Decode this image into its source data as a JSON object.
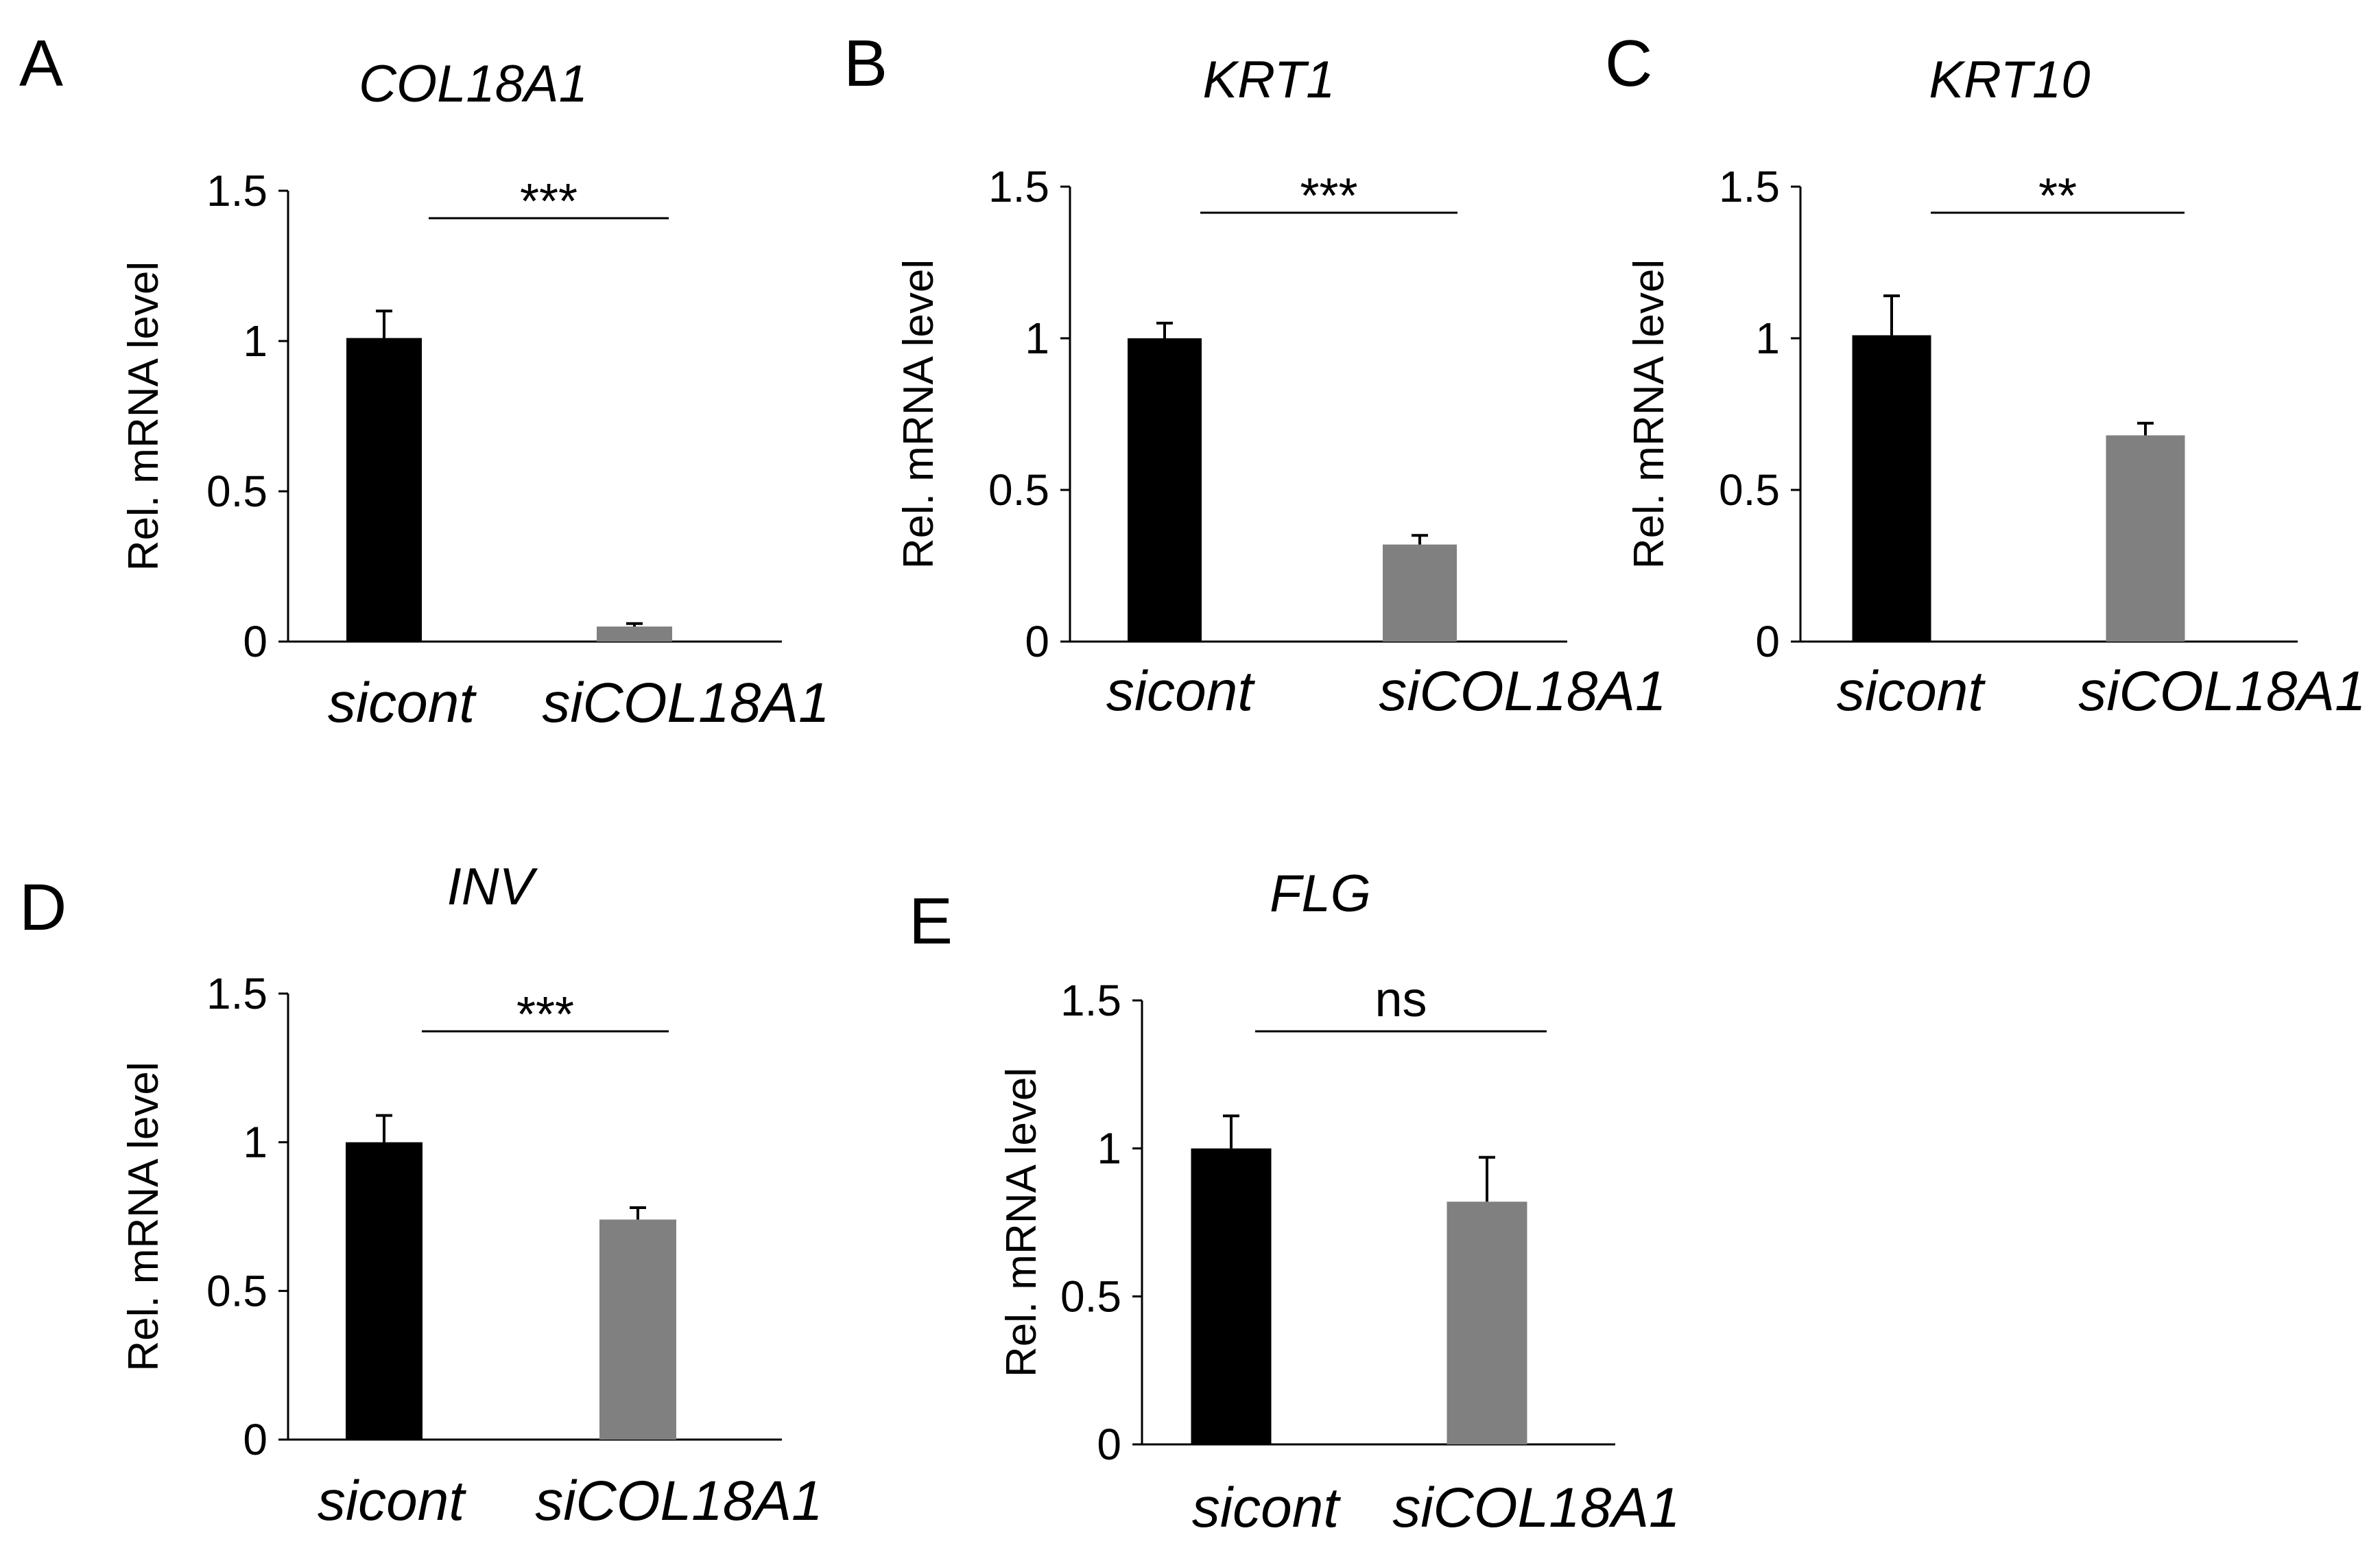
{
  "chart_data": [
    {
      "panel": "A",
      "type": "bar",
      "title": "COL18A1",
      "ylabel": "Rel. mRNA level",
      "ylim": [
        0,
        1.5
      ],
      "yticks": [
        "0",
        "0.5",
        "1",
        "1.5"
      ],
      "categories": [
        "sicont",
        "siCOL18A1"
      ],
      "values": [
        1.01,
        0.05
      ],
      "errors": [
        0.09,
        0.01
      ],
      "colors": [
        "#000000",
        "#808080"
      ],
      "significance": "***"
    },
    {
      "panel": "B",
      "type": "bar",
      "title": "KRT1",
      "ylabel": "Rel. mRNA level",
      "ylim": [
        0,
        1.5
      ],
      "yticks": [
        "0",
        "0.5",
        "1",
        "1.5"
      ],
      "categories": [
        "sicont",
        "siCOL18A1"
      ],
      "values": [
        1.0,
        0.32
      ],
      "errors": [
        0.05,
        0.03
      ],
      "colors": [
        "#000000",
        "#808080"
      ],
      "significance": "***"
    },
    {
      "panel": "C",
      "type": "bar",
      "title": "KRT10",
      "ylabel": "Rel. mRNA level",
      "ylim": [
        0,
        1.5
      ],
      "yticks": [
        "0",
        "0.5",
        "1",
        "1.5"
      ],
      "categories": [
        "sicont",
        "siCOL18A1"
      ],
      "values": [
        1.01,
        0.68
      ],
      "errors": [
        0.13,
        0.04
      ],
      "colors": [
        "#000000",
        "#808080"
      ],
      "significance": "**"
    },
    {
      "panel": "D",
      "type": "bar",
      "title": "INV",
      "ylabel": "Rel. mRNA level",
      "ylim": [
        0,
        1.5
      ],
      "yticks": [
        "0",
        "0.5",
        "1",
        "1.5"
      ],
      "categories": [
        "sicont",
        "siCOL18A1"
      ],
      "values": [
        1.0,
        0.74
      ],
      "errors": [
        0.09,
        0.04
      ],
      "colors": [
        "#000000",
        "#808080"
      ],
      "significance": "***"
    },
    {
      "panel": "E",
      "type": "bar",
      "title": "FLG",
      "ylabel": "Rel. mRNA level",
      "ylim": [
        0,
        1.5
      ],
      "yticks": [
        "0",
        "0.5",
        "1",
        "1.5"
      ],
      "categories": [
        "sicont",
        "siCOL18A1"
      ],
      "values": [
        1.0,
        0.82
      ],
      "errors": [
        0.11,
        0.15
      ],
      "colors": [
        "#000000",
        "#808080"
      ],
      "significance": "ns"
    }
  ]
}
